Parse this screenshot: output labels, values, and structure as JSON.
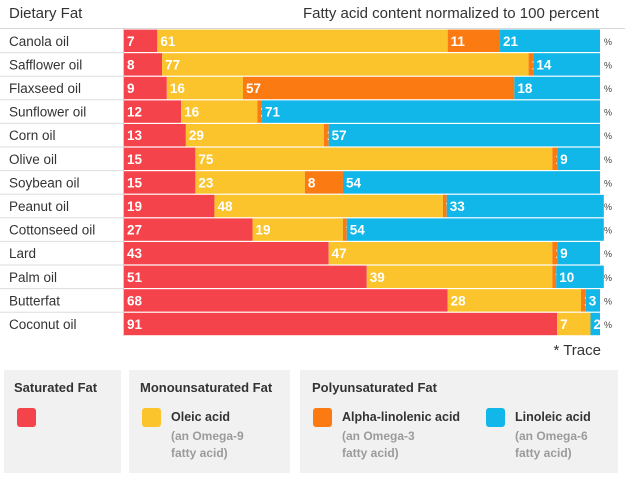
{
  "header": {
    "left_title": "Dietary Fat",
    "right_title": "Fatty acid content normalized to 100 percent"
  },
  "trace_note": "* Trace",
  "percent_symbol": "%",
  "colors": {
    "saturated": "#f4434a",
    "oleic": "#fbc32c",
    "alpha_linolenic": "#fb7a12",
    "linoleic": "#10b7e8"
  },
  "chart_data": {
    "type": "bar",
    "orientation": "horizontal",
    "stacked": true,
    "title": "Fatty acid content normalized to 100 percent",
    "ylabel": "Dietary Fat",
    "xlim": [
      0,
      100
    ],
    "unit": "%",
    "categories": [
      "Canola oil",
      "Safflower oil",
      "Flaxseed oil",
      "Sunflower oil",
      "Corn oil",
      "Olive oil",
      "Soybean oil",
      "Peanut oil",
      "Cottonseed oil",
      "Lard",
      "Palm oil",
      "Butterfat",
      "Coconut oil"
    ],
    "series": [
      {
        "name": "Saturated Fat",
        "color_key": "saturated",
        "values": [
          7,
          8,
          9,
          12,
          13,
          15,
          15,
          19,
          27,
          43,
          51,
          68,
          91
        ],
        "labels": [
          "7",
          "8",
          "9",
          "12",
          "13",
          "15",
          "15",
          "19",
          "27",
          "43",
          "51",
          "68",
          "91"
        ]
      },
      {
        "name": "Oleic acid",
        "color_key": "oleic",
        "values": [
          61,
          77,
          16,
          16,
          29,
          75,
          23,
          48,
          19,
          47,
          39,
          28,
          7
        ],
        "labels": [
          "61",
          "77",
          "16",
          "16",
          "29",
          "75",
          "23",
          "48",
          "19",
          "47",
          "39",
          "28",
          "7"
        ]
      },
      {
        "name": "Alpha-linolenic acid",
        "color_key": "alpha_linolenic",
        "values": [
          11,
          1,
          57,
          1,
          1,
          1,
          8,
          0.8,
          0.8,
          1,
          0.8,
          1,
          0
        ],
        "labels": [
          "11",
          "1",
          "57",
          "1",
          "1",
          "1",
          "8",
          "*",
          "*",
          "1",
          "*",
          "1",
          ""
        ]
      },
      {
        "name": "Linoleic acid",
        "color_key": "linoleic",
        "values": [
          21,
          14,
          18,
          71,
          57,
          9,
          54,
          33,
          54,
          9,
          10,
          3,
          2
        ],
        "labels": [
          "21",
          "14",
          "18",
          "71",
          "57",
          "9",
          "54",
          "33",
          "54",
          "9",
          "10",
          "3",
          "2"
        ]
      }
    ]
  },
  "legend": {
    "saturated": {
      "title": "Saturated Fat"
    },
    "mono": {
      "title": "Monounsaturated Fat",
      "item_name": "Oleic acid",
      "item_note_1": "(an Omega-9",
      "item_note_2": "fatty acid)"
    },
    "poly": {
      "title": "Polyunsaturated Fat",
      "alpha_name": "Alpha-linolenic acid",
      "alpha_note_1": "(an Omega-3",
      "alpha_note_2": "fatty acid)",
      "linoleic_name": "Linoleic acid",
      "linoleic_note_1": "(an Omega-6",
      "linoleic_note_2": "fatty acid)"
    }
  }
}
